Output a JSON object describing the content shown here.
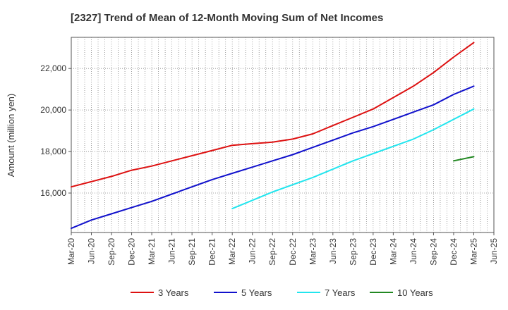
{
  "chart_data": {
    "type": "line",
    "title": "[2327]  Trend of Mean of 12-Month Moving Sum of Net Incomes",
    "xlabel": "",
    "ylabel": "Amount (million yen)",
    "ylim": [
      14100,
      23500
    ],
    "yticks": [
      16000,
      18000,
      20000,
      22000
    ],
    "ytick_labels": [
      "16,000",
      "18,000",
      "20,000",
      "22,000"
    ],
    "xlim": [
      "2020-03",
      "2025-06"
    ],
    "xticks": [
      "2020-03",
      "2020-06",
      "2020-09",
      "2020-12",
      "2021-03",
      "2021-06",
      "2021-09",
      "2021-12",
      "2022-03",
      "2022-06",
      "2022-09",
      "2022-12",
      "2023-03",
      "2023-06",
      "2023-09",
      "2023-12",
      "2024-03",
      "2024-06",
      "2024-09",
      "2024-12",
      "2025-03",
      "2025-06"
    ],
    "xtick_labels": [
      "Mar-20",
      "Jun-20",
      "Sep-20",
      "Dec-20",
      "Mar-21",
      "Jun-21",
      "Sep-21",
      "Dec-21",
      "Mar-22",
      "Jun-22",
      "Sep-22",
      "Dec-22",
      "Mar-23",
      "Jun-23",
      "Sep-23",
      "Dec-23",
      "Mar-24",
      "Jun-24",
      "Sep-24",
      "Dec-24",
      "Mar-25",
      "Jun-25"
    ],
    "grid": true,
    "legend_position": "bottom",
    "series": [
      {
        "name": "3 Years",
        "color": "#dd1111",
        "x": [
          "2020-03",
          "2020-06",
          "2020-09",
          "2020-12",
          "2021-03",
          "2021-06",
          "2021-09",
          "2021-12",
          "2022-03",
          "2022-06",
          "2022-09",
          "2022-12",
          "2023-03",
          "2023-06",
          "2023-09",
          "2023-12",
          "2024-03",
          "2024-06",
          "2024-09",
          "2024-12",
          "2025-03"
        ],
        "values": [
          16300,
          16550,
          16800,
          17100,
          17300,
          17550,
          17800,
          18050,
          18300,
          18380,
          18450,
          18600,
          18850,
          19250,
          19650,
          20050,
          20600,
          21150,
          21800,
          22550,
          23250
        ]
      },
      {
        "name": "5 Years",
        "color": "#1111cc",
        "x": [
          "2020-03",
          "2020-06",
          "2020-09",
          "2020-12",
          "2021-03",
          "2021-06",
          "2021-09",
          "2021-12",
          "2022-03",
          "2022-06",
          "2022-09",
          "2022-12",
          "2023-03",
          "2023-06",
          "2023-09",
          "2023-12",
          "2024-03",
          "2024-06",
          "2024-09",
          "2024-12",
          "2025-03"
        ],
        "values": [
          14300,
          14700,
          15000,
          15300,
          15600,
          15950,
          16300,
          16650,
          16950,
          17250,
          17550,
          17850,
          18200,
          18550,
          18900,
          19200,
          19550,
          19900,
          20250,
          20750,
          21150
        ]
      },
      {
        "name": "7 Years",
        "color": "#22e5ee",
        "x": [
          "2022-03",
          "2022-06",
          "2022-09",
          "2022-12",
          "2023-03",
          "2023-06",
          "2023-09",
          "2023-12",
          "2024-03",
          "2024-06",
          "2024-09",
          "2024-12",
          "2025-03"
        ],
        "values": [
          15250,
          15650,
          16050,
          16400,
          16750,
          17150,
          17550,
          17900,
          18250,
          18600,
          19050,
          19550,
          20050
        ]
      },
      {
        "name": "10 Years",
        "color": "#228822",
        "x": [
          "2024-12",
          "2025-03"
        ],
        "values": [
          17550,
          17750
        ]
      }
    ]
  }
}
